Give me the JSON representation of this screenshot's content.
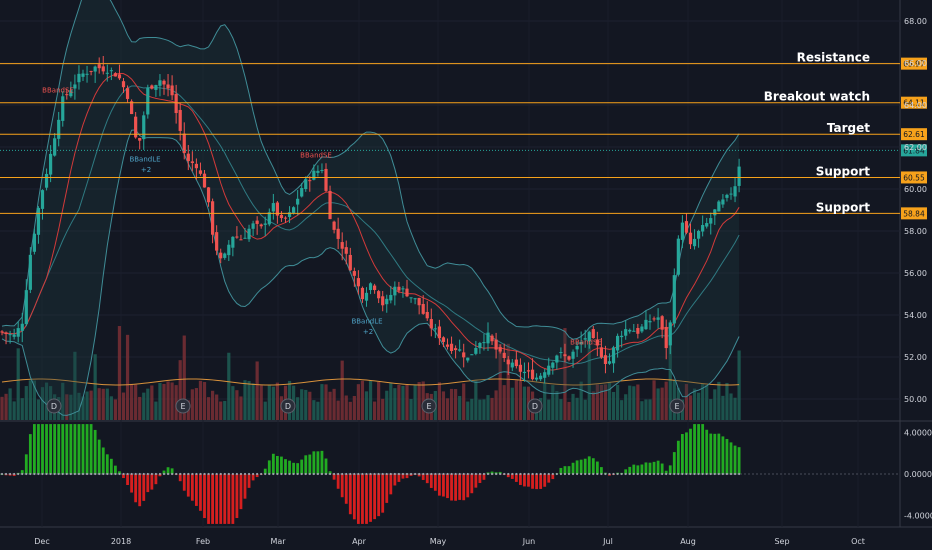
{
  "chart_data": {
    "type": "candlestick",
    "price_axis": {
      "ylim": [
        49.0,
        69.0
      ],
      "ticks": [
        "68.00",
        "66.00",
        "64.00",
        "62.00",
        "60.00",
        "58.00",
        "56.00",
        "54.00",
        "52.00",
        "50.00"
      ]
    },
    "osc_axis": {
      "ylim": [
        -5.0,
        5.0
      ],
      "ticks": [
        "4.0000",
        "0.0000",
        "-4.0000"
      ]
    },
    "x_axis": {
      "ticks": [
        "Dec",
        "2018",
        "Feb",
        "Mar",
        "Apr",
        "May",
        "Jun",
        "Jul",
        "Aug",
        "Sep",
        "Oct"
      ]
    },
    "levels": [
      {
        "label": "Resistance",
        "value": 65.97,
        "tag": "65.97",
        "color": "#f7a21b"
      },
      {
        "label": "Breakout watch",
        "value": 64.11,
        "tag": "64.11",
        "color": "#f7a21b"
      },
      {
        "label": "Target",
        "value": 62.61,
        "tag": "62.61",
        "color": "#f7a21b"
      },
      {
        "label": "Support",
        "value": 60.55,
        "tag": "60.55",
        "color": "#f7a21b"
      },
      {
        "label": "Support",
        "value": 58.84,
        "tag": "58.84",
        "color": "#f7a21b"
      }
    ],
    "last_price": {
      "value": 61.84,
      "tag": "61.84",
      "color": "#26a69a"
    },
    "signals": [
      {
        "label": "BBandSE",
        "color": "#ef5350",
        "price": 64.6
      },
      {
        "label": "BBandLE",
        "color": "#4fa3c7",
        "price": 61.3
      },
      {
        "label": "+2",
        "color": "#4fa3c7",
        "price": 60.8
      },
      {
        "label": "BBandSE",
        "color": "#ef5350",
        "price": 61.5
      },
      {
        "label": "BBandLE",
        "color": "#4fa3c7",
        "price": 53.6
      },
      {
        "label": "+2",
        "color": "#4fa3c7",
        "price": 53.1
      },
      {
        "label": "BBandSE",
        "color": "#ef5350",
        "price": 52.6
      }
    ],
    "events": [
      "D",
      "E",
      "D",
      "E",
      "D",
      "E"
    ],
    "colors": {
      "up": "#26a69a",
      "down": "#ef5350",
      "bb": "#3f8c96",
      "ma": "#d23a3a",
      "volma": "#d9923b",
      "osc_up": "#22ab22",
      "osc_down": "#d61f1f"
    }
  }
}
